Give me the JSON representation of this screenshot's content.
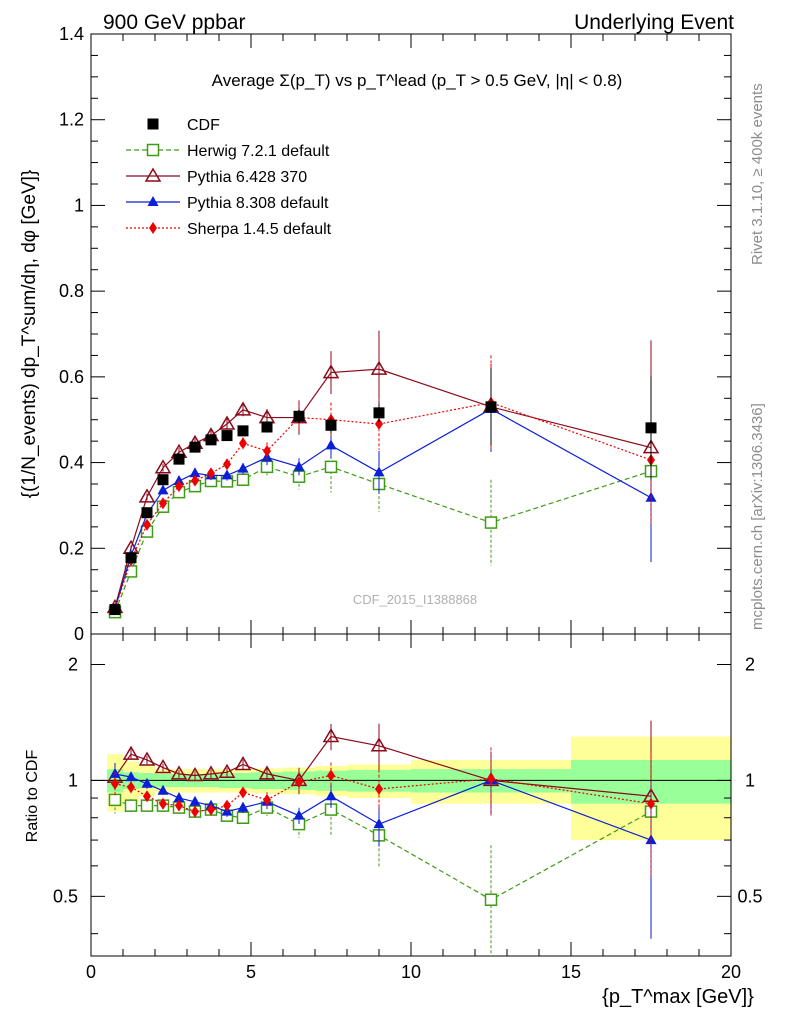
{
  "header": {
    "left": "900 GeV ppbar",
    "right": "Underlying Event"
  },
  "side_labels": {
    "rivet": "Rivet 3.1.10, ≥ 400k events",
    "mcplots": "mcplots.cern.ch [arXiv:1306.3436]"
  },
  "watermark": "CDF_2015_I1388868",
  "chart_data": {
    "type": "line",
    "title": "Average Σ(p_T) vs p_T^lead (p_T > 0.5 GeV, |η| < 0.8)",
    "xlabel": "{p_T^max [GeV]}",
    "ylabel": "{(1/N_events) dp_T^sum/dη, dφ [GeV]}",
    "ratio_ylabel": "Ratio to CDF",
    "xlim": [
      0,
      20
    ],
    "ylim": [
      0,
      1.4
    ],
    "ratio_ylim": [
      0.35,
      2.4
    ],
    "xticks": [
      "0",
      "5",
      "10",
      "15",
      "20"
    ],
    "yticks": [
      "0",
      "0.2",
      "0.4",
      "0.6",
      "0.8",
      "1",
      "1.2",
      "1.4"
    ],
    "ratio_yticks": [
      "0.5",
      "1",
      "2"
    ],
    "x": [
      0.75,
      1.25,
      1.75,
      2.25,
      2.75,
      3.25,
      3.75,
      4.25,
      4.75,
      5.5,
      6.5,
      7.5,
      9.0,
      12.5,
      17.5
    ],
    "series": [
      {
        "name": "CDF",
        "color": "#000000",
        "marker": "square",
        "values": [
          0.057,
          0.178,
          0.283,
          0.36,
          0.408,
          0.436,
          0.453,
          0.463,
          0.474,
          0.483,
          0.508,
          0.487,
          0.516,
          0.53,
          0.481
        ],
        "ratio": [
          1,
          1,
          1,
          1,
          1,
          1,
          1,
          1,
          1,
          1,
          1,
          1,
          1,
          1,
          1
        ]
      },
      {
        "name": "Herwig 7.2.1 default",
        "color": "#3f9a15",
        "marker": "open-square",
        "dash": "5,3",
        "values": [
          0.051,
          0.146,
          0.239,
          0.297,
          0.331,
          0.345,
          0.357,
          0.356,
          0.36,
          0.39,
          0.367,
          0.39,
          0.35,
          0.26,
          0.38
        ],
        "errors": [
          0.004,
          0.006,
          0.008,
          0.008,
          0.009,
          0.01,
          0.011,
          0.012,
          0.014,
          0.02,
          0.03,
          0.06,
          0.065,
          0.1,
          0.16
        ],
        "ratio": [
          0.89,
          0.86,
          0.86,
          0.86,
          0.85,
          0.83,
          0.84,
          0.81,
          0.8,
          0.85,
          0.77,
          0.84,
          0.72,
          0.49,
          0.83
        ]
      },
      {
        "name": "Pythia 6.428 370",
        "color": "#8b0a1a",
        "marker": "open-triangle",
        "values": [
          0.062,
          0.2,
          0.32,
          0.388,
          0.424,
          0.445,
          0.463,
          0.49,
          0.523,
          0.505,
          0.505,
          0.61,
          0.618,
          0.53,
          0.435
        ],
        "errors": [
          0.004,
          0.006,
          0.008,
          0.009,
          0.01,
          0.011,
          0.012,
          0.013,
          0.015,
          0.02,
          0.04,
          0.05,
          0.09,
          0.1,
          0.25
        ],
        "ratio": [
          1.02,
          1.17,
          1.13,
          1.08,
          1.04,
          1.03,
          1.04,
          1.05,
          1.1,
          1.04,
          1.0,
          1.3,
          1.23,
          1.0,
          0.91
        ]
      },
      {
        "name": "Pythia 8.308 default",
        "color": "#0a1fd8",
        "marker": "triangle",
        "values": [
          0.059,
          0.183,
          0.28,
          0.335,
          0.357,
          0.375,
          0.37,
          0.37,
          0.386,
          0.412,
          0.39,
          0.44,
          0.377,
          0.525,
          0.318
        ],
        "errors": [
          0.004,
          0.006,
          0.008,
          0.008,
          0.01,
          0.01,
          0.011,
          0.012,
          0.013,
          0.018,
          0.02,
          0.03,
          0.05,
          0.1,
          0.15
        ],
        "ratio": [
          1.04,
          1.02,
          0.98,
          0.94,
          0.9,
          0.88,
          0.86,
          0.83,
          0.85,
          0.88,
          0.81,
          0.91,
          0.77,
          1.0,
          0.7
        ]
      },
      {
        "name": "Sherpa 1.4.5 default",
        "color": "#ee0000",
        "marker": "diamond",
        "dash": "2,2",
        "values": [
          0.058,
          0.172,
          0.255,
          0.305,
          0.345,
          0.358,
          0.375,
          0.396,
          0.445,
          0.427,
          0.505,
          0.5,
          0.49,
          0.54,
          0.406
        ],
        "errors": [
          0.004,
          0.006,
          0.008,
          0.008,
          0.009,
          0.01,
          0.011,
          0.012,
          0.014,
          0.02,
          0.03,
          0.04,
          0.06,
          0.11,
          0.15
        ],
        "ratio": [
          0.98,
          0.96,
          0.91,
          0.87,
          0.86,
          0.83,
          0.84,
          0.86,
          0.93,
          0.89,
          0.99,
          1.03,
          0.95,
          1.01,
          0.87
        ]
      }
    ],
    "data_errors": [
      0.003,
      0.005,
      0.006,
      0.007,
      0.007,
      0.008,
      0.009,
      0.01,
      0.011,
      0.013,
      0.016,
      0.018,
      0.022,
      0.09,
      0.12
    ],
    "ratio_band_edges": [
      0.5,
      1.0,
      1.5,
      2.0,
      2.5,
      3.0,
      3.5,
      4.0,
      4.5,
      5.0,
      6.0,
      7.0,
      8.0,
      10.0,
      15.0,
      20.0
    ],
    "ratio_band_stat": [
      0.07,
      0.05,
      0.045,
      0.04,
      0.04,
      0.04,
      0.04,
      0.045,
      0.045,
      0.05,
      0.055,
      0.06,
      0.065,
      0.07,
      0.13
    ],
    "ratio_band_total": [
      0.17,
      0.12,
      0.09,
      0.07,
      0.07,
      0.07,
      0.07,
      0.07,
      0.07,
      0.075,
      0.08,
      0.09,
      0.1,
      0.13,
      0.3
    ]
  }
}
